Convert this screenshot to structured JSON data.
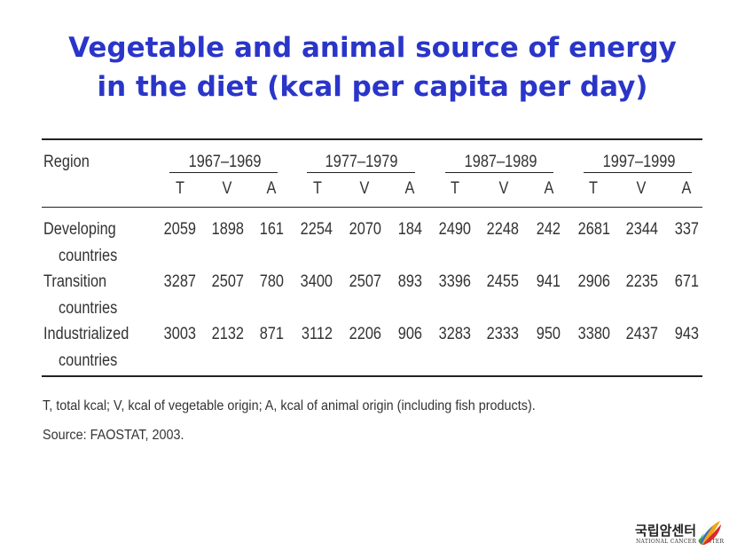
{
  "title_line1": "Vegetable and animal source of energy",
  "title_line2": "in the diet (kcal per capita per day)",
  "table": {
    "region_header": "Region",
    "periods": [
      "1967–1969",
      "1977–1979",
      "1987–1989",
      "1997–1999"
    ],
    "subheaders": [
      "T",
      "V",
      "A"
    ],
    "rows": [
      {
        "label1": "Developing",
        "label2": "countries",
        "values": [
          "2059",
          "1898",
          "161",
          "2254",
          "2070",
          "184",
          "2490",
          "2248",
          "242",
          "2681",
          "2344",
          "337"
        ]
      },
      {
        "label1": "Transition",
        "label2": "countries",
        "values": [
          "3287",
          "2507",
          "780",
          "3400",
          "2507",
          "893",
          "3396",
          "2455",
          "941",
          "2906",
          "2235",
          "671"
        ]
      },
      {
        "label1": "Industrialized",
        "label2": "countries",
        "values": [
          "3003",
          "2132",
          "871",
          "3112",
          "2206",
          "906",
          "3283",
          "2333",
          "950",
          "3380",
          "2437",
          "943"
        ]
      }
    ]
  },
  "footnote": "T, total kcal; V, kcal of vegetable origin; A, kcal of animal origin (including fish products).",
  "source": "Source: FAOSTAT, 2003.",
  "logo": {
    "korean": "국립암센터",
    "english": "NATIONAL CANCER CENTER"
  },
  "colors": {
    "title": "#2a35c9",
    "text": "#333333"
  }
}
